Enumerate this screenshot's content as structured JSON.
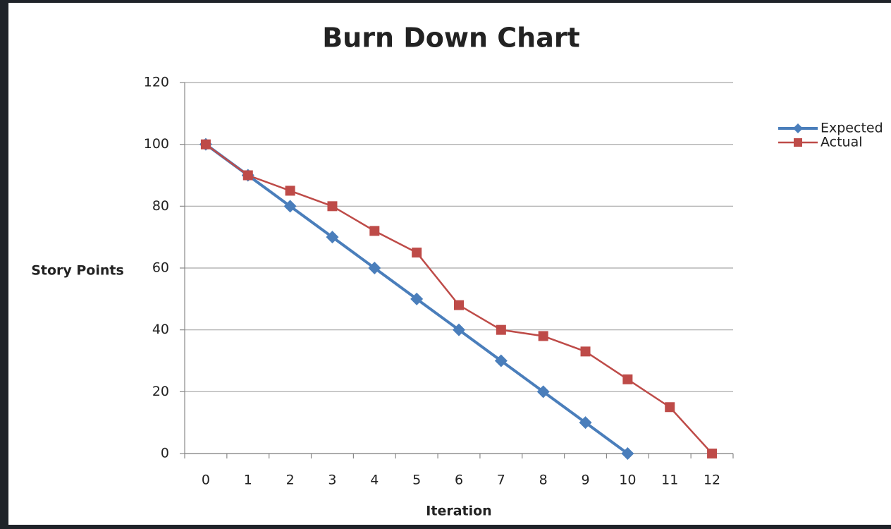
{
  "chart_data": {
    "type": "line",
    "title": "Burn Down Chart",
    "x_label": "Iteration",
    "y_label": "Story Points",
    "categories": [
      "0",
      "1",
      "2",
      "3",
      "4",
      "5",
      "6",
      "7",
      "8",
      "9",
      "10",
      "11",
      "12"
    ],
    "series": [
      {
        "name": "Expected",
        "color": "#4a7ebb",
        "marker": "diamond",
        "values": [
          100,
          90,
          80,
          70,
          60,
          50,
          40,
          30,
          20,
          10,
          0,
          null,
          null
        ]
      },
      {
        "name": "Actual",
        "color": "#be4b48",
        "marker": "square",
        "values": [
          100,
          90,
          85,
          80,
          72,
          65,
          48,
          40,
          38,
          33,
          24,
          15,
          0
        ]
      }
    ],
    "ylim": [
      0,
      120
    ],
    "yticks": [
      0,
      20,
      40,
      60,
      80,
      100,
      120
    ],
    "grid": true,
    "legend": "right"
  }
}
